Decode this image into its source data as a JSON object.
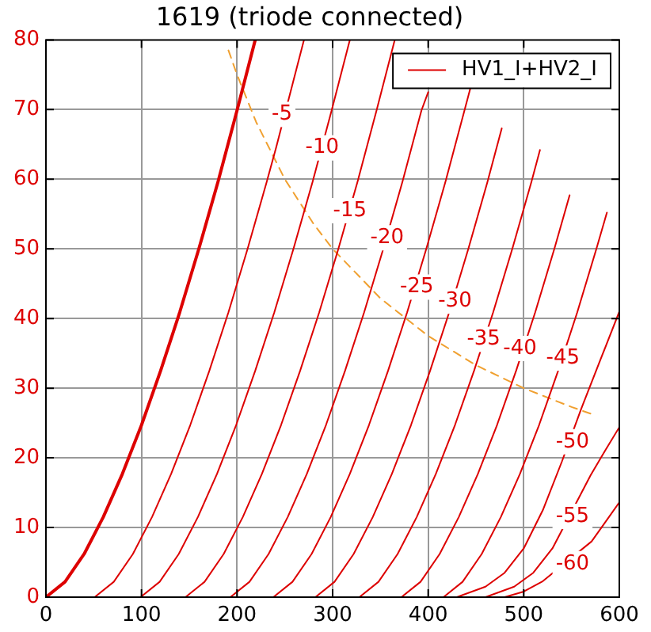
{
  "chart_data": {
    "type": "line",
    "title": "1619 (triode connected)",
    "xlim": [
      0,
      600
    ],
    "ylim": [
      0,
      80
    ],
    "xticks": [
      0,
      100,
      200,
      300,
      400,
      500,
      600
    ],
    "yticks": [
      0,
      10,
      20,
      30,
      40,
      50,
      60,
      70,
      80
    ],
    "grid": true,
    "legend": "top right",
    "marker": "none",
    "series": [
      {
        "color": "#dd0000",
        "x": [
          0,
          20,
          40,
          60,
          80,
          100,
          120,
          140,
          160,
          180,
          200,
          219
        ],
        "values": [
          0,
          2.2,
          6.2,
          11.5,
          17.7,
          24.7,
          32.5,
          40.9,
          50.0,
          59.6,
          69.9,
          80.0
        ]
      },
      {
        "name": "HV1_I+HV2_I",
        "color": "#dd0000",
        "x": [
          51,
          71,
          91,
          111,
          131,
          151,
          171,
          191,
          211,
          231,
          241,
          270
        ],
        "values": [
          0,
          2.2,
          6.2,
          11.5,
          17.7,
          24.7,
          32.5,
          40.9,
          50.0,
          59.6,
          64.6,
          80.0
        ]
      },
      {
        "color": "#dd0000",
        "x": [
          99,
          119,
          139,
          159,
          179,
          199,
          219,
          239,
          259,
          279,
          299,
          318
        ],
        "values": [
          0,
          2.2,
          6.2,
          11.5,
          17.7,
          24.7,
          32.5,
          40.9,
          50.0,
          59.6,
          69.9,
          80.0
        ]
      },
      {
        "color": "#dd0000",
        "x": [
          146,
          166,
          186,
          206,
          226,
          246,
          266,
          286,
          306,
          326,
          346,
          365
        ],
        "values": [
          0,
          2.2,
          6.2,
          11.5,
          17.7,
          24.7,
          32.5,
          40.9,
          50.0,
          59.6,
          69.9,
          80.0
        ]
      },
      {
        "color": "#dd0000",
        "x": [
          193,
          213,
          233,
          253,
          273,
          293,
          313,
          333,
          353,
          373,
          393,
          400
        ],
        "values": [
          0,
          2.2,
          6.2,
          11.5,
          17.7,
          24.7,
          32.5,
          40.9,
          50.0,
          59.6,
          69.9,
          72.5
        ]
      },
      {
        "color": "#dd0000",
        "x": [
          238,
          258,
          278,
          298,
          318,
          338,
          358,
          378,
          398,
          418,
          438,
          444
        ],
        "values": [
          0,
          2.2,
          6.2,
          11.5,
          17.7,
          24.7,
          32.5,
          40.9,
          50.0,
          59.6,
          69.9,
          73.0
        ]
      },
      {
        "color": "#dd0000",
        "x": [
          282,
          302,
          322,
          342,
          362,
          382,
          402,
          422,
          442,
          462,
          477
        ],
        "values": [
          0,
          2.2,
          6.2,
          11.5,
          17.7,
          24.7,
          32.5,
          40.9,
          50.0,
          59.6,
          67.3
        ]
      },
      {
        "color": "#dd0000",
        "x": [
          328,
          348,
          368,
          388,
          408,
          428,
          448,
          468,
          488,
          508,
          517
        ],
        "values": [
          0,
          2.2,
          6.2,
          11.5,
          17.7,
          24.7,
          32.5,
          40.9,
          50.0,
          59.6,
          64.2
        ]
      },
      {
        "color": "#dd0000",
        "x": [
          372,
          392,
          412,
          432,
          452,
          472,
          492,
          512,
          532,
          548
        ],
        "values": [
          0,
          2.2,
          6.2,
          11.5,
          17.7,
          24.7,
          32.5,
          40.9,
          50.0,
          57.7
        ]
      },
      {
        "color": "#dd0000",
        "x": [
          416,
          436,
          456,
          476,
          496,
          516,
          536,
          556,
          576,
          587
        ],
        "values": [
          0,
          2.2,
          6.2,
          11.5,
          17.7,
          24.7,
          32.5,
          40.9,
          50.0,
          55.2
        ]
      },
      {
        "color": "#dd0000",
        "x": [
          430,
          460,
          480,
          500,
          520,
          540,
          560,
          580,
          600
        ],
        "values": [
          0,
          1.5,
          3.5,
          7,
          12.5,
          19.5,
          27,
          34,
          41
        ]
      },
      {
        "color": "#dd0000",
        "x": [
          460,
          490,
          510,
          530,
          570,
          585,
          600
        ],
        "values": [
          0,
          1.5,
          3.5,
          7,
          17.5,
          21,
          24.4
        ]
      },
      {
        "color": "#dd0000",
        "x": [
          480,
          500,
          520,
          571,
          585,
          600
        ],
        "values": [
          0,
          0.8,
          2.3,
          8,
          10.7,
          13.6
        ]
      },
      {
        "color": "#f0a030",
        "line_style": "dashed",
        "x": [
          191,
          200,
          220,
          250,
          280,
          300,
          350,
          400,
          450,
          500,
          550,
          575
        ],
        "values": [
          78.5,
          75,
          68.2,
          60,
          53.6,
          50,
          42.9,
          37.5,
          33.3,
          30,
          27.3,
          26.1
        ]
      }
    ],
    "annotations": [
      {
        "text": "-5",
        "x": 247,
        "y": 69.3
      },
      {
        "text": "-10",
        "x": 289,
        "y": 64.5
      },
      {
        "text": "-15",
        "x": 318,
        "y": 55.5
      },
      {
        "text": "-20",
        "x": 357,
        "y": 51.6
      },
      {
        "text": "-25",
        "x": 388,
        "y": 44.5
      },
      {
        "text": "-30",
        "x": 428,
        "y": 42.5
      },
      {
        "text": "-35",
        "x": 458,
        "y": 37.0
      },
      {
        "text": "-40",
        "x": 496,
        "y": 35.7
      },
      {
        "text": "-45",
        "x": 541,
        "y": 34.3
      },
      {
        "text": "-50",
        "x": 551,
        "y": 22.3
      },
      {
        "text": "-55",
        "x": 551,
        "y": 11.6
      },
      {
        "text": "-60",
        "x": 551,
        "y": 4.8
      }
    ]
  }
}
